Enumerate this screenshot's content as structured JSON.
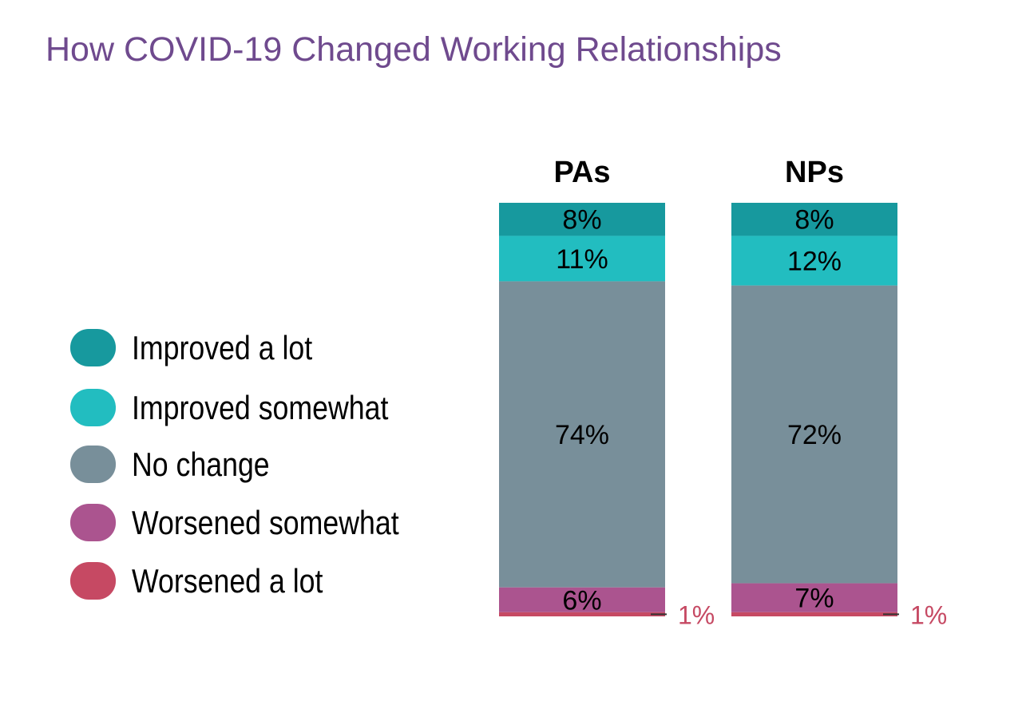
{
  "chart_data": {
    "type": "bar",
    "stacked": true,
    "title": "How COVID-19 Changed Working Relationships",
    "categories": [
      "PAs",
      "NPs"
    ],
    "series": [
      {
        "name": "Improved a lot",
        "color": "#17999e",
        "values": [
          8,
          8
        ]
      },
      {
        "name": "Improved somewhat",
        "color": "#22bdc0",
        "values": [
          11,
          12
        ]
      },
      {
        "name": "No change",
        "color": "#788f9a",
        "values": [
          74,
          72
        ]
      },
      {
        "name": "Worsened somewhat",
        "color": "#ab548f",
        "values": [
          6,
          7
        ]
      },
      {
        "name": "Worsened a lot",
        "color": "#c64963",
        "values": [
          1,
          1
        ]
      }
    ],
    "value_format": "percent",
    "legend_placement": "left",
    "grid": false,
    "axes_visible": false
  }
}
